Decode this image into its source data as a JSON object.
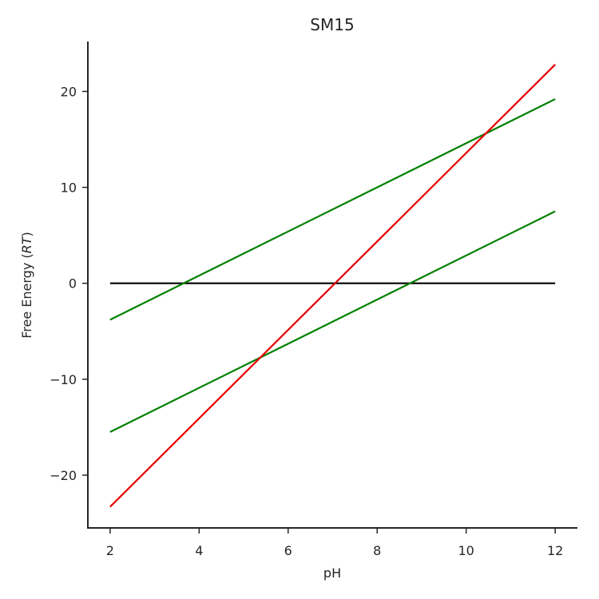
{
  "chart_data": {
    "type": "line",
    "title": "SM15",
    "xlabel": "pH",
    "ylabel_prefix": "Free Energy (",
    "ylabel_italic": "RT",
    "ylabel_suffix": ")",
    "xlim": [
      1.5,
      12.5
    ],
    "ylim": [
      -25.5,
      25.2
    ],
    "xticks": [
      2,
      4,
      6,
      8,
      10,
      12
    ],
    "yticks": [
      -20,
      -10,
      0,
      10,
      20
    ],
    "ytick_labels": [
      "−20",
      "−10",
      "0",
      "10",
      "20"
    ],
    "grid": false,
    "series": [
      {
        "color": "#000000",
        "x": [
          2,
          12
        ],
        "y": [
          0,
          0
        ]
      },
      {
        "color": "#008000",
        "x": [
          2,
          12
        ],
        "y": [
          -3.8,
          19.2
        ]
      },
      {
        "color": "#008000",
        "x": [
          2,
          12
        ],
        "y": [
          -15.5,
          7.5
        ]
      },
      {
        "color": "#e60000",
        "x": [
          2,
          12
        ],
        "y": [
          -23.3,
          22.8
        ]
      }
    ]
  }
}
